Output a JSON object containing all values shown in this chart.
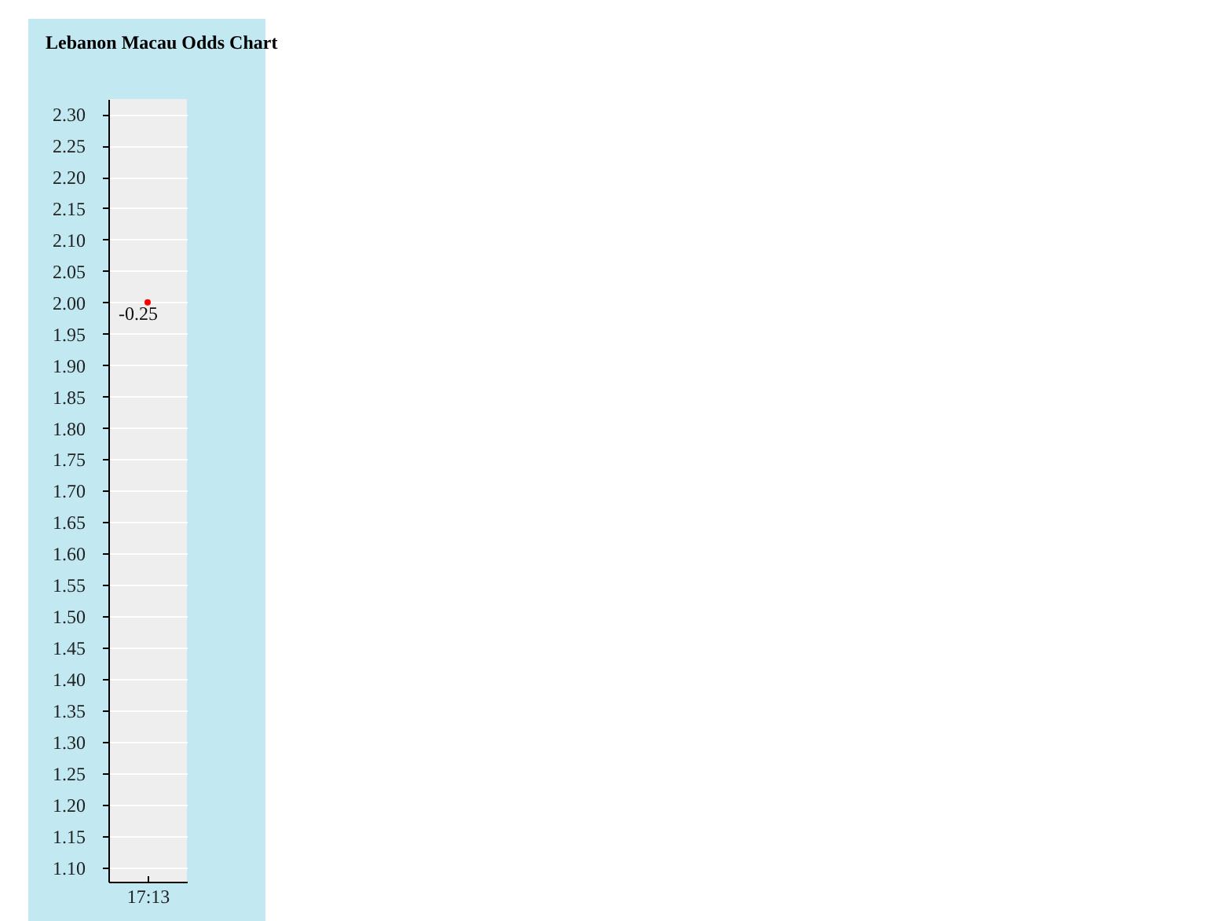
{
  "chart_data": {
    "type": "scatter",
    "title": "Lebanon Macau Odds Chart",
    "categories": [
      "17:13"
    ],
    "series": [
      {
        "color": "#ff0000",
        "values": [
          2.0
        ]
      }
    ],
    "ylim": [
      1.077,
      2.324
    ],
    "yticks": [
      {
        "value": 1.1,
        "label": "1.10"
      },
      {
        "value": 1.15,
        "label": "1.15"
      },
      {
        "value": 1.2,
        "label": "1.20"
      },
      {
        "value": 1.25,
        "label": "1.25"
      },
      {
        "value": 1.3,
        "label": "1.30"
      },
      {
        "value": 1.35,
        "label": "1.35"
      },
      {
        "value": 1.4,
        "label": "1.40"
      },
      {
        "value": 1.45,
        "label": "1.45"
      },
      {
        "value": 1.5,
        "label": "1.50"
      },
      {
        "value": 1.55,
        "label": "1.55"
      },
      {
        "value": 1.6,
        "label": "1.60"
      },
      {
        "value": 1.65,
        "label": "1.65"
      },
      {
        "value": 1.7,
        "label": "1.70"
      },
      {
        "value": 1.75,
        "label": "1.75"
      },
      {
        "value": 1.8,
        "label": "1.80"
      },
      {
        "value": 1.85,
        "label": "1.85"
      },
      {
        "value": 1.9,
        "label": "1.90"
      },
      {
        "value": 1.95,
        "label": "1.95"
      },
      {
        "value": 2.0,
        "label": "2.00"
      },
      {
        "value": 2.05,
        "label": "2.05"
      },
      {
        "value": 2.1,
        "label": "2.10"
      },
      {
        "value": 2.15,
        "label": "2.15"
      },
      {
        "value": 2.2,
        "label": "2.20"
      },
      {
        "value": 2.25,
        "label": "2.25"
      },
      {
        "value": 2.3,
        "label": "2.30"
      }
    ],
    "grid": "y",
    "marker": "circle",
    "annotations": [
      {
        "text": "-0.25",
        "x": "17:13",
        "y": 2.0
      }
    ]
  }
}
